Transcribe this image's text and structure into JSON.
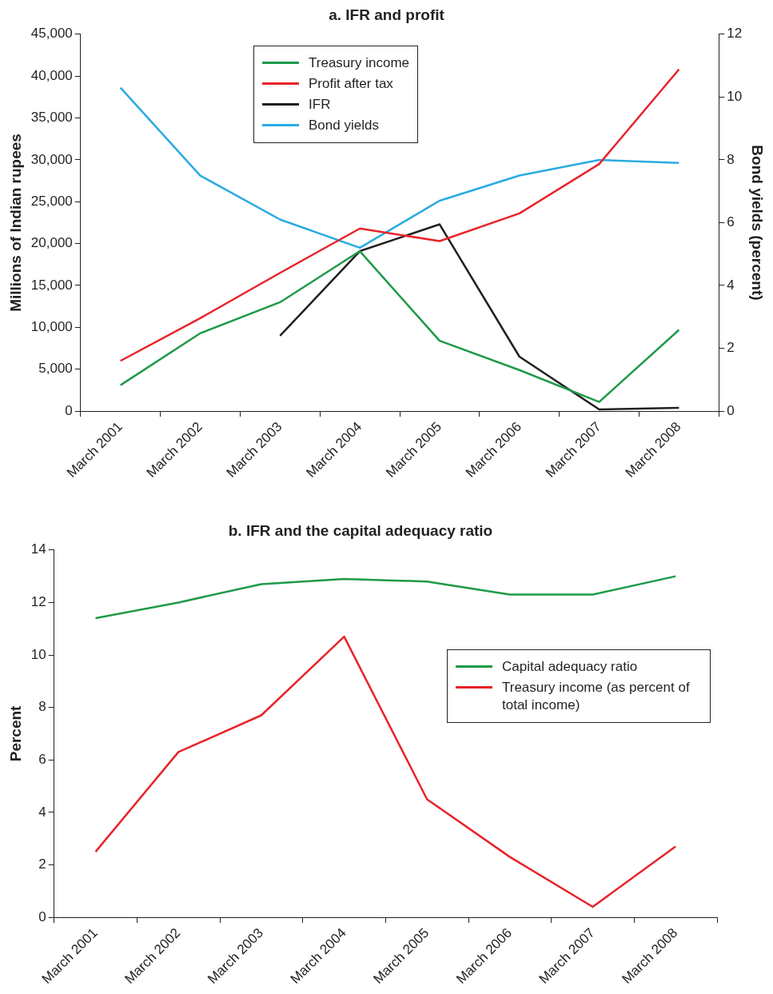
{
  "chart_data": [
    {
      "type": "line",
      "title": "a. IFR and profit",
      "ylabel": "Millions of Indian rupees",
      "y2label": "Bond yields (percent)",
      "categories": [
        "March 2001",
        "March 2002",
        "March 2003",
        "March 2004",
        "March 2005",
        "March 2006",
        "March 2007",
        "March 2008"
      ],
      "series": [
        {
          "name": "Treasury income",
          "color": "#1e9a48",
          "values": [
            3100,
            9300,
            13000,
            19100,
            8400,
            4900,
            1100,
            9700
          ]
        },
        {
          "name": "Profit after tax",
          "color": "#e8232a",
          "values": [
            6000,
            11100,
            16500,
            21800,
            20300,
            23600,
            29500,
            40800
          ]
        },
        {
          "name": "IFR",
          "color": "#231f20",
          "values": [
            null,
            null,
            9000,
            19100,
            22300,
            6500,
            200,
            400
          ]
        },
        {
          "name": "Bond yields",
          "color": "#29abe2",
          "axis": "y2",
          "values": [
            10.3,
            7.5,
            6.1,
            5.2,
            6.7,
            7.5,
            8.0,
            7.9
          ]
        }
      ],
      "ylim": [
        0,
        45000
      ],
      "yticks": [
        0,
        {
          "value": 5000,
          "label": "5,000"
        },
        {
          "value": 10000,
          "label": "10,000"
        },
        {
          "value": 15000,
          "label": "15,000"
        },
        {
          "value": 20000,
          "label": "20,000"
        },
        {
          "value": 25000,
          "label": "25,000"
        },
        {
          "value": 30000,
          "label": "30,000"
        },
        {
          "value": 35000,
          "label": "35,000"
        },
        {
          "value": 40000,
          "label": "40,000"
        },
        {
          "value": 45000,
          "label": "45,000"
        }
      ],
      "y2lim": [
        0,
        12
      ],
      "y2ticks": [
        0,
        2,
        4,
        6,
        8,
        10,
        12
      ],
      "grid": false,
      "legend": "top",
      "marker": "none",
      "line_style": "solid"
    },
    {
      "type": "line",
      "title": "b. IFR and the capital adequacy ratio",
      "ylabel": "Percent",
      "categories": [
        "March 2001",
        "March 2002",
        "March 2003",
        "March 2004",
        "March 2005",
        "March 2006",
        "March 2007",
        "March 2008"
      ],
      "series": [
        {
          "name": "Capital adequacy ratio",
          "color": "#1e9a48",
          "values": [
            11.4,
            12.0,
            12.7,
            12.9,
            12.8,
            12.3,
            12.3,
            13.0
          ]
        },
        {
          "name": "Treasury income (as percent of total income)",
          "color": "#e8232a",
          "values": [
            2.5,
            6.3,
            7.7,
            10.7,
            4.5,
            2.3,
            0.4,
            2.7
          ]
        }
      ],
      "ylim": [
        0,
        14
      ],
      "yticks": [
        0,
        2,
        4,
        6,
        8,
        10,
        12,
        14
      ],
      "grid": false,
      "legend": "right",
      "marker": "none",
      "line_style": "solid"
    }
  ]
}
